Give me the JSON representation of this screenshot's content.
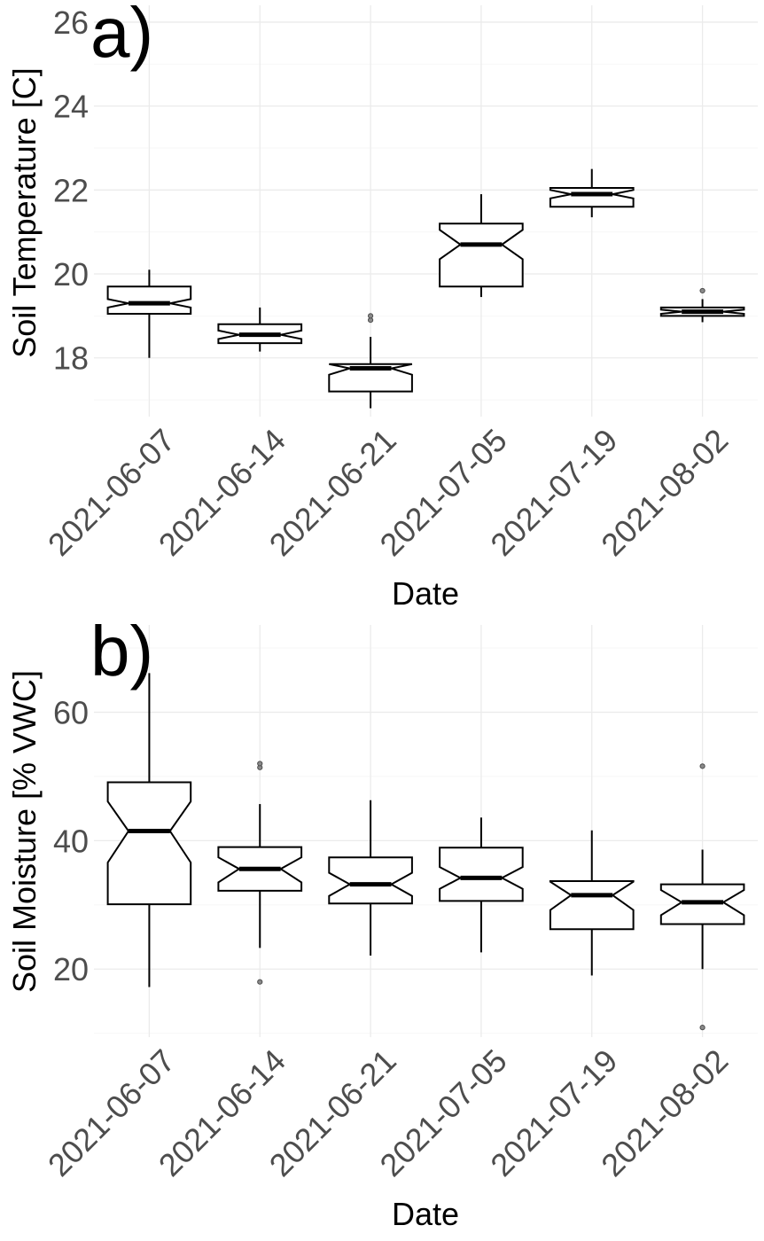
{
  "chart_data": [
    {
      "type": "boxplot",
      "panel_label": "a)",
      "xlabel": "Date",
      "ylabel": "Soil Temperature [C]",
      "ylim": [
        16.6,
        26.4
      ],
      "yticks": [
        18,
        20,
        22,
        24,
        26
      ],
      "categories": [
        "2021-06-07",
        "2021-06-14",
        "2021-06-21",
        "2021-07-05",
        "2021-07-19",
        "2021-08-02"
      ],
      "boxes": [
        {
          "category": "2021-06-07",
          "min": 18.0,
          "q1": 19.05,
          "median": 19.3,
          "q3": 19.7,
          "max": 20.1,
          "notch_low": 19.2,
          "notch_high": 19.4,
          "outliers": []
        },
        {
          "category": "2021-06-14",
          "min": 18.15,
          "q1": 18.35,
          "median": 18.55,
          "q3": 18.8,
          "max": 19.2,
          "notch_low": 18.45,
          "notch_high": 18.65,
          "outliers": []
        },
        {
          "category": "2021-06-21",
          "min": 16.8,
          "q1": 17.2,
          "median": 17.75,
          "q3": 17.85,
          "max": 18.5,
          "notch_low": 17.6,
          "notch_high": 17.9,
          "outliers": [
            18.9,
            19.0
          ]
        },
        {
          "category": "2021-07-05",
          "min": 19.45,
          "q1": 19.7,
          "median": 20.7,
          "q3": 21.2,
          "max": 21.9,
          "notch_low": 20.35,
          "notch_high": 21.05,
          "outliers": []
        },
        {
          "category": "2021-07-19",
          "min": 21.35,
          "q1": 21.6,
          "median": 21.9,
          "q3": 22.05,
          "max": 22.5,
          "notch_low": 21.8,
          "notch_high": 22.0,
          "outliers": []
        },
        {
          "category": "2021-08-02",
          "min": 18.85,
          "q1": 19.0,
          "median": 19.1,
          "q3": 19.2,
          "max": 19.4,
          "notch_low": 19.05,
          "notch_high": 19.15,
          "outliers": [
            19.6
          ]
        }
      ]
    },
    {
      "type": "boxplot",
      "panel_label": "b)",
      "xlabel": "Date",
      "ylabel": "Soil Moisture [% VWC]",
      "ylim": [
        9.4,
        73.6
      ],
      "yticks": [
        20,
        40,
        60
      ],
      "categories": [
        "2021-06-07",
        "2021-06-14",
        "2021-06-21",
        "2021-07-05",
        "2021-07-19",
        "2021-08-02"
      ],
      "boxes": [
        {
          "category": "2021-06-07",
          "min": 17.2,
          "q1": 30.1,
          "median": 41.5,
          "q3": 49.1,
          "max": 66.1,
          "notch_low": 36.6,
          "notch_high": 46.1,
          "outliers": []
        },
        {
          "category": "2021-06-14",
          "min": 23.3,
          "q1": 32.2,
          "median": 35.6,
          "q3": 39.0,
          "max": 45.7,
          "notch_low": 33.5,
          "notch_high": 37.4,
          "outliers": [
            51.4,
            52.0,
            18.0
          ]
        },
        {
          "category": "2021-06-21",
          "min": 22.1,
          "q1": 30.2,
          "median": 33.2,
          "q3": 37.4,
          "max": 46.3,
          "notch_low": 31.4,
          "notch_high": 35.0,
          "outliers": []
        },
        {
          "category": "2021-07-05",
          "min": 22.6,
          "q1": 30.6,
          "median": 34.2,
          "q3": 38.9,
          "max": 43.6,
          "notch_low": 32.5,
          "notch_high": 35.9,
          "outliers": []
        },
        {
          "category": "2021-07-19",
          "min": 19.0,
          "q1": 26.2,
          "median": 31.5,
          "q3": 33.7,
          "max": 41.6,
          "notch_low": 29.2,
          "notch_high": 33.6,
          "outliers": []
        },
        {
          "category": "2021-08-02",
          "min": 20.0,
          "q1": 27.0,
          "median": 30.4,
          "q3": 33.2,
          "max": 38.6,
          "notch_low": 28.4,
          "notch_high": 32.3,
          "outliers": [
            51.6,
            10.9
          ]
        }
      ]
    }
  ]
}
